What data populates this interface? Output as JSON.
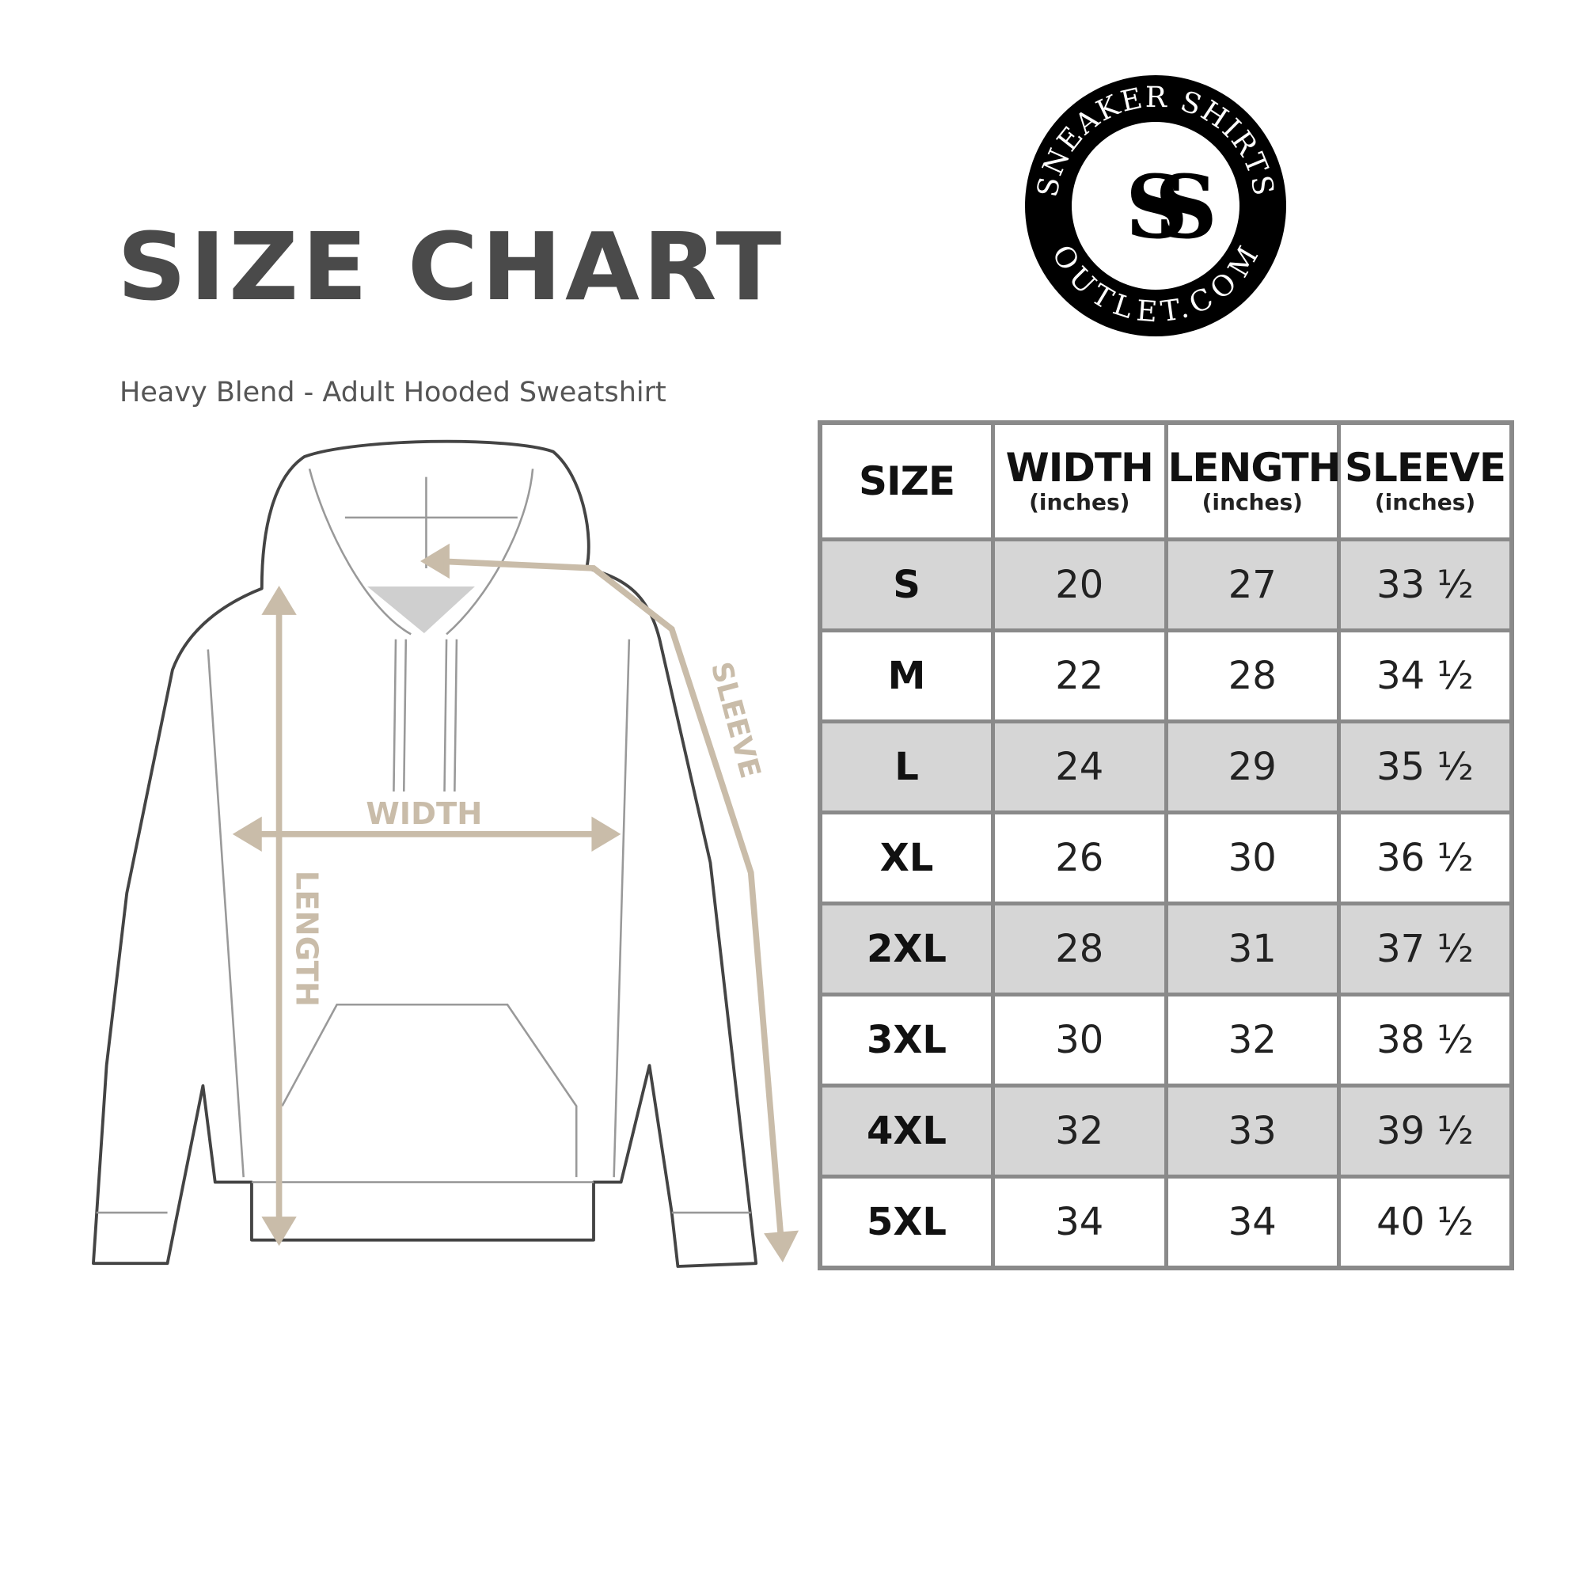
{
  "title": "SIZE CHART",
  "subtitle": "Heavy Blend - Adult Hooded Sweatshirt",
  "logo": {
    "top_text": "SNEAKER SHIRTS",
    "bottom_text": "OUTLET.COM",
    "monogram": "SS"
  },
  "diagram": {
    "width_label": "WIDTH",
    "length_label": "LENGTH",
    "sleeve_label": "SLEEVE"
  },
  "colors": {
    "arrow": "#c9bca9",
    "title": "#4a4a4a",
    "shade": "#d6d6d6",
    "border": "#8a8a8a"
  },
  "table": {
    "headers": [
      {
        "label": "SIZE",
        "unit": ""
      },
      {
        "label": "WIDTH",
        "unit": "(inches)"
      },
      {
        "label": "LENGTH",
        "unit": "(inches)"
      },
      {
        "label": "SLEEVE",
        "unit": "(inches)"
      }
    ],
    "rows": [
      [
        "S",
        "20",
        "27",
        "33 ½"
      ],
      [
        "M",
        "22",
        "28",
        "34 ½"
      ],
      [
        "L",
        "24",
        "29",
        "35 ½"
      ],
      [
        "XL",
        "26",
        "30",
        "36 ½"
      ],
      [
        "2XL",
        "28",
        "31",
        "37 ½"
      ],
      [
        "3XL",
        "30",
        "32",
        "38 ½"
      ],
      [
        "4XL",
        "32",
        "33",
        "39 ½"
      ],
      [
        "5XL",
        "34",
        "34",
        "40 ½"
      ]
    ]
  }
}
